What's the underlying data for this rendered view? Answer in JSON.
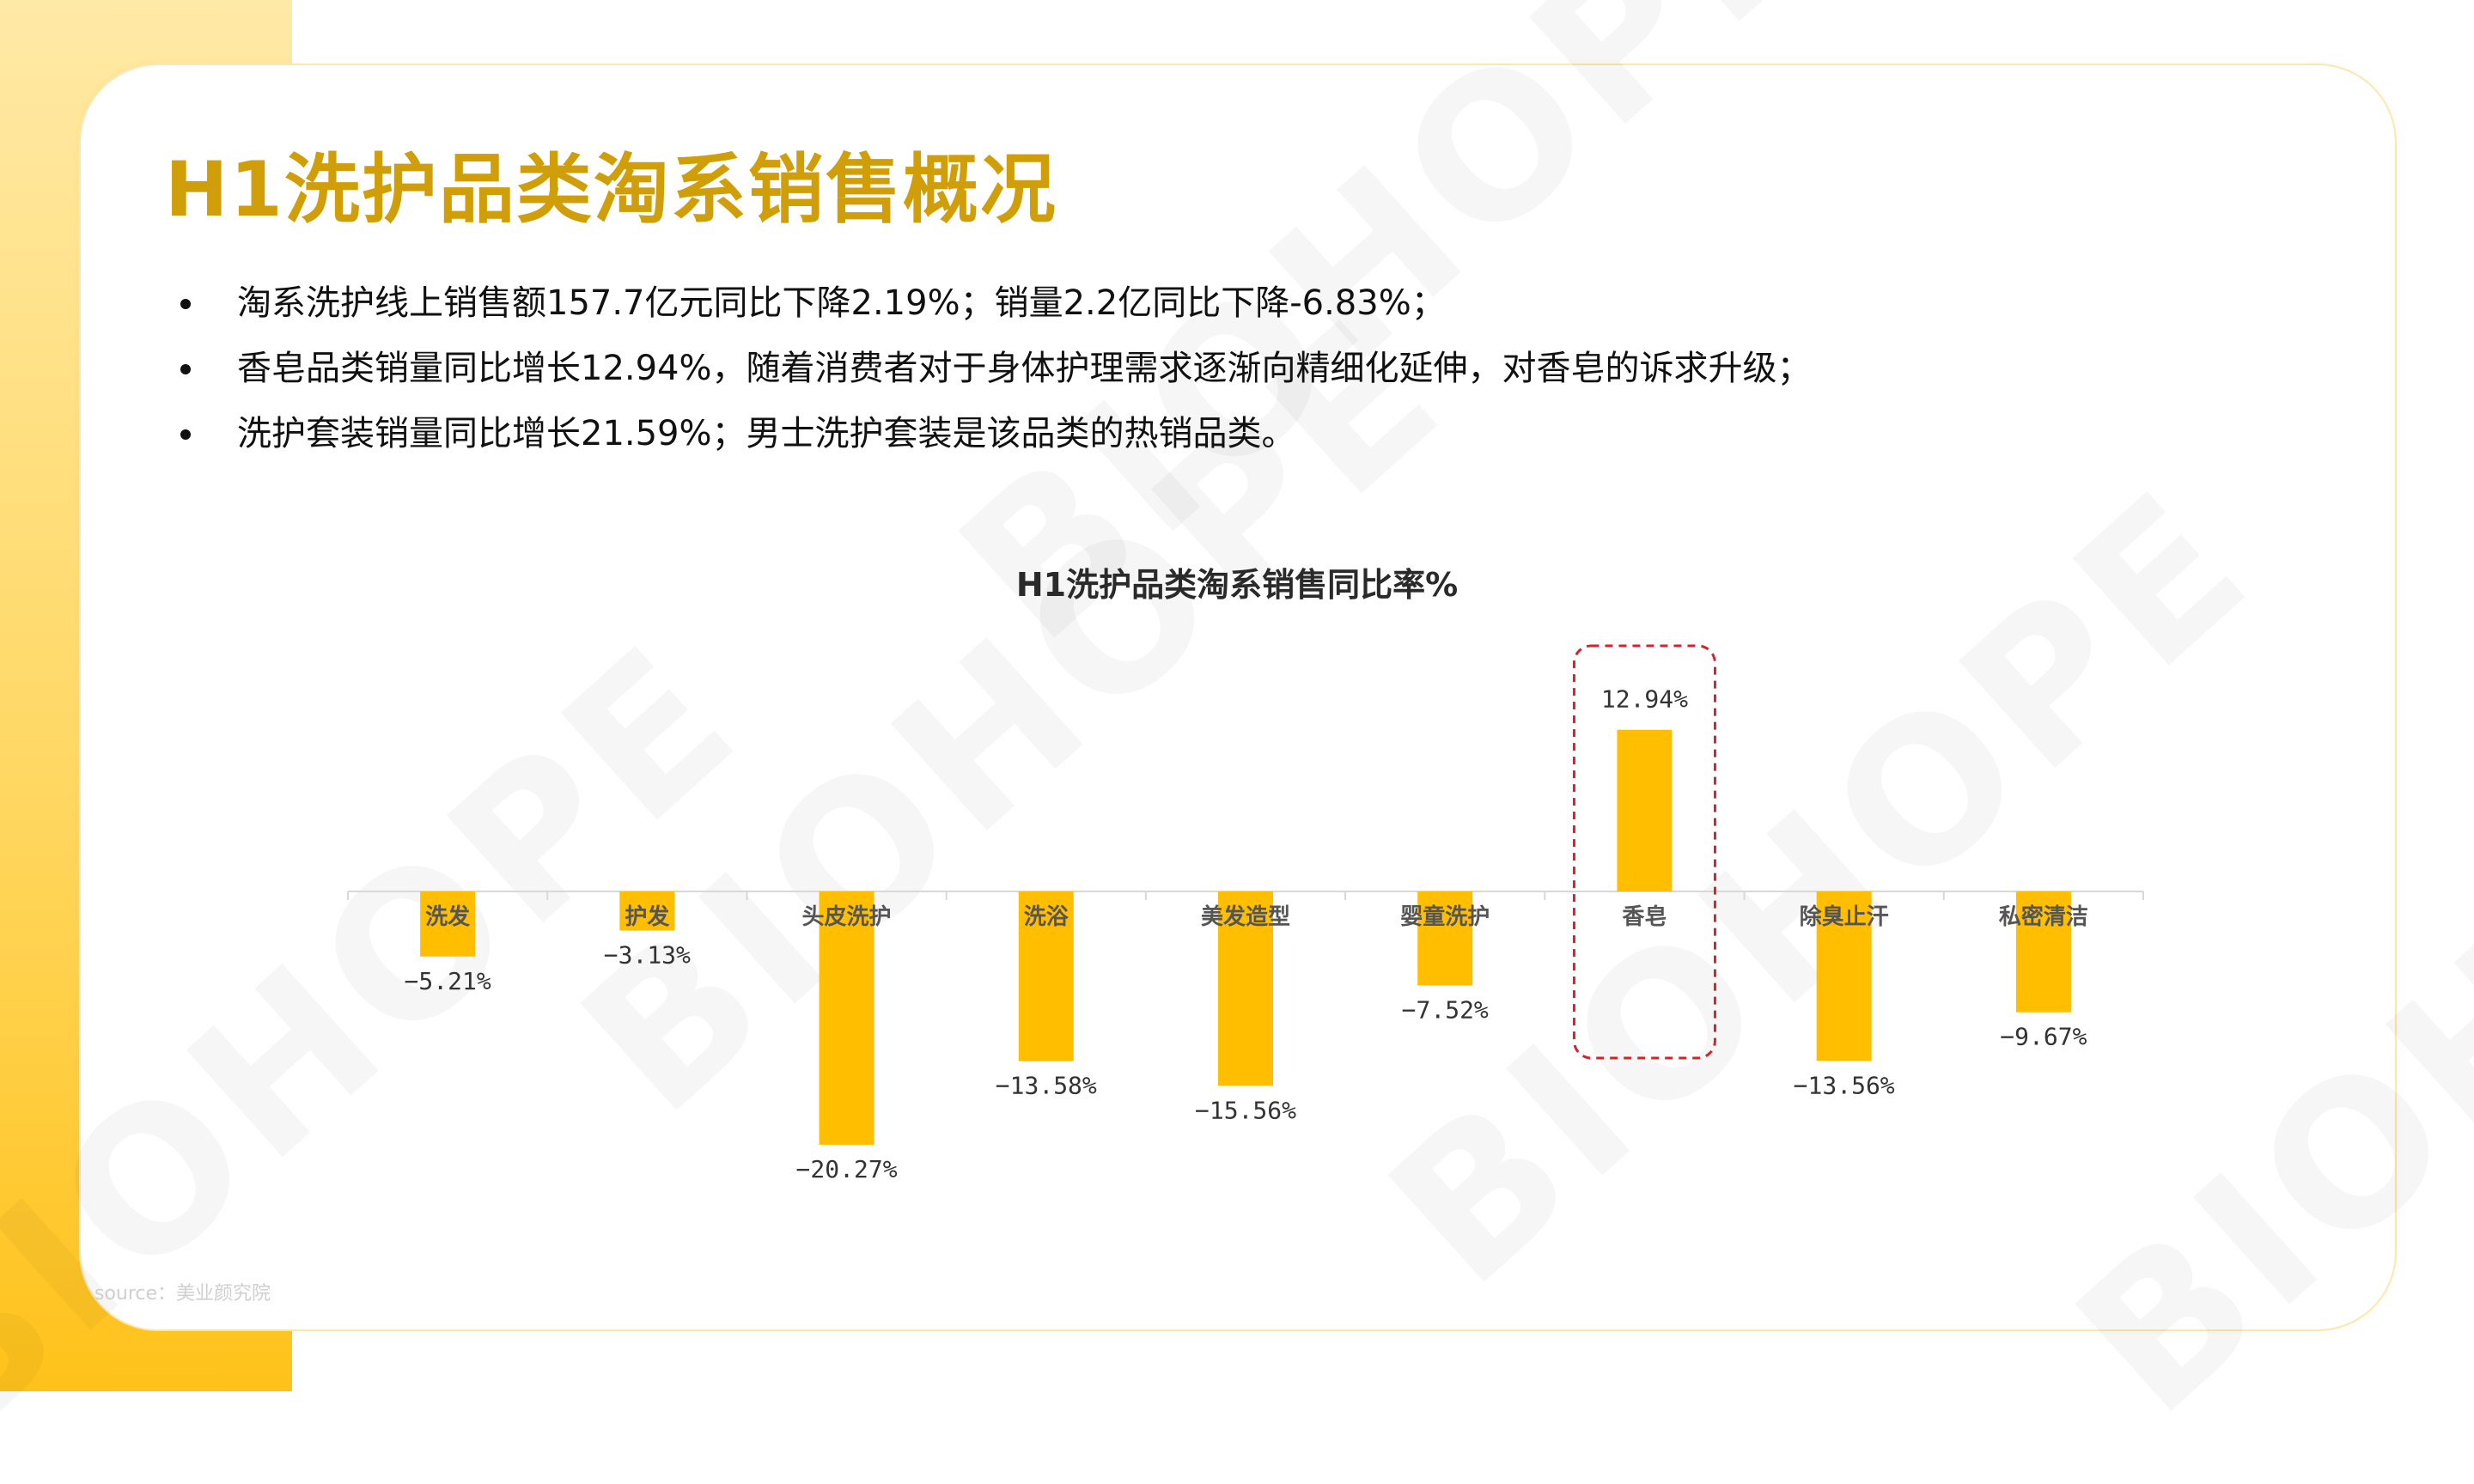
{
  "title": "H1洗护品类淘系销售概况",
  "bullets": [
    "淘系洗护线上销售额157.7亿元同比下降2.19%；销量2.2亿同比下降-6.83%；",
    "香皂品类销量同比增长12.94%，随着消费者对于身体护理需求逐渐向精细化延伸，对香皂的诉求升级；",
    "洗护套装销量同比增长21.59%；男士洗护套装是该品类的热销品类。"
  ],
  "source": "source：美业颜究院",
  "watermark": "BIOHOPE",
  "colors": {
    "title": "#d09e08",
    "bar": "#ffbe00",
    "highlight_box": "#d0262b",
    "band": "#ffd864"
  },
  "chart_data": {
    "type": "bar",
    "title": "H1洗护品类淘系销售同比率%",
    "categories": [
      "洗发",
      "护发",
      "头皮洗护",
      "洗浴",
      "美发造型",
      "婴童洗护",
      "香皂",
      "除臭止汗",
      "私密清洁"
    ],
    "values": [
      -5.21,
      -3.13,
      -20.27,
      -13.58,
      -15.56,
      -7.52,
      12.94,
      -13.56,
      -9.67
    ],
    "value_labels": [
      "−5.21%",
      "−3.13%",
      "−20.27%",
      "−13.58%",
      "−15.56%",
      "−7.52%",
      "12.94%",
      "−13.56%",
      "−9.67%"
    ],
    "highlighted_category": "香皂",
    "ylim": [
      -22,
      14
    ],
    "grid": false,
    "legend": "none"
  }
}
